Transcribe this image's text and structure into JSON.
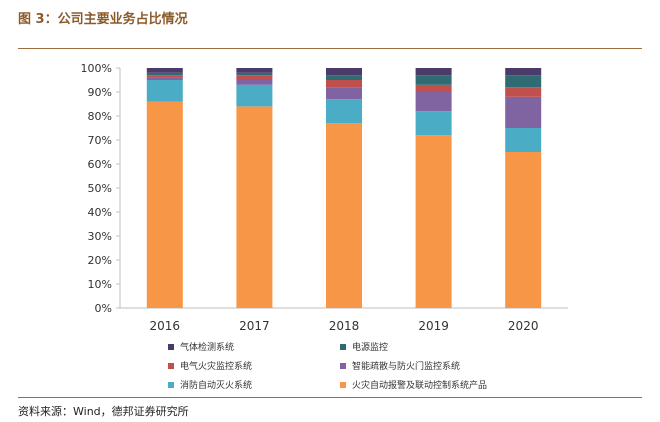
{
  "figure": {
    "title": "图 3：公司主要业务占比情况",
    "source": "资料来源：Wind，德邦证券研究所"
  },
  "chart_data": {
    "type": "bar",
    "stacked": true,
    "categories": [
      "2016",
      "2017",
      "2018",
      "2019",
      "2020"
    ],
    "y_ticks": [
      "0%",
      "10%",
      "20%",
      "30%",
      "40%",
      "50%",
      "60%",
      "70%",
      "80%",
      "90%",
      "100%"
    ],
    "ylim": [
      0,
      100
    ],
    "series": [
      {
        "name": "火灾自动报警及联动控制系统产品",
        "color": "#F79646",
        "values": [
          86,
          84,
          77,
          72,
          65
        ]
      },
      {
        "name": "消防自动灭火系统",
        "color": "#4BACC6",
        "values": [
          9,
          9,
          10,
          10,
          10
        ]
      },
      {
        "name": "智能疏散与防火门监控系统",
        "color": "#8064A2",
        "values": [
          1,
          2,
          5,
          8,
          13
        ]
      },
      {
        "name": "电气火灾监控系统",
        "color": "#C0504D",
        "values": [
          1,
          2,
          3,
          3,
          4
        ]
      },
      {
        "name": "电源监控",
        "color": "#2E6B73",
        "values": [
          1,
          1,
          2,
          4,
          5
        ]
      },
      {
        "name": "气体检测系统",
        "color": "#4A3B6B",
        "values": [
          2,
          2,
          3,
          3,
          3
        ]
      }
    ],
    "legend_layout": "two columns below chart"
  }
}
